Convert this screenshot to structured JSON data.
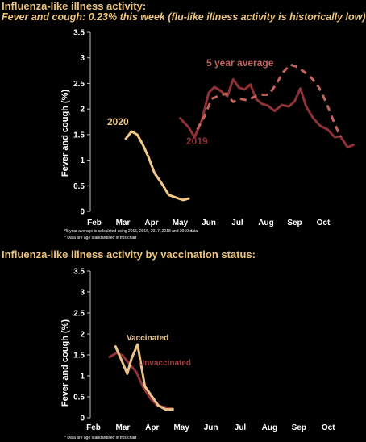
{
  "header": {
    "title1": "Influenza-like illness activity:",
    "subtitle1": "Fever and cough: 0.23% this week (flu-like illness activity is historically low)",
    "title2": "Influenza-like illness activity by vaccination status:"
  },
  "colors": {
    "title": "#ecc47e",
    "y2020": "#f2c886",
    "y2019": "#8e3238",
    "avg": "#c2655c",
    "vacc": "#e9c389",
    "unvacc": "#8e3238"
  },
  "chart_data": [
    {
      "type": "line",
      "ylabel": "Fever and cough (%)",
      "ylim": [
        0,
        3.5
      ],
      "yticks": [
        "0",
        "0.5",
        "1",
        "1.5",
        "2",
        "2.5",
        "3",
        "3.5"
      ],
      "months": [
        "Feb",
        "Mar",
        "Apr",
        "May",
        "Jun",
        "Jul",
        "Aug",
        "Sep",
        "Oct"
      ],
      "series": [
        {
          "name": "2020",
          "color": "#f2c886",
          "dashed": false,
          "x": [
            1.1,
            1.3,
            1.5,
            1.7,
            1.9,
            2.1,
            2.35,
            2.6,
            2.85,
            3.1,
            3.3
          ],
          "y": [
            1.42,
            1.56,
            1.5,
            1.3,
            1.05,
            0.75,
            0.55,
            0.32,
            0.27,
            0.22,
            0.25
          ]
        },
        {
          "name": "2019",
          "color": "#8e3238",
          "dashed": false,
          "x": [
            3.0,
            3.3,
            3.5,
            3.75,
            4.0,
            4.2,
            4.4,
            4.65,
            4.85,
            5.05,
            5.25,
            5.45,
            5.65,
            5.85,
            6.05,
            6.3,
            6.55,
            6.8,
            7.0,
            7.2,
            7.4,
            7.65,
            7.9,
            8.15,
            8.4,
            8.6,
            8.85,
            9.05
          ],
          "y": [
            1.82,
            1.64,
            1.45,
            1.77,
            2.32,
            2.43,
            2.36,
            2.25,
            2.58,
            2.42,
            2.38,
            2.48,
            2.2,
            2.1,
            2.07,
            1.96,
            2.08,
            2.05,
            2.15,
            2.4,
            2.05,
            1.82,
            1.67,
            1.6,
            1.45,
            1.47,
            1.25,
            1.3
          ]
        },
        {
          "name": "5 year average",
          "color": "#c2655c",
          "dashed": true,
          "x": [
            3.6,
            3.85,
            4.1,
            4.35,
            4.6,
            4.85,
            5.1,
            5.35,
            5.6,
            5.85,
            6.1,
            6.35,
            6.6,
            6.85,
            7.1,
            7.35,
            7.6,
            7.85,
            8.1,
            8.35,
            8.6
          ],
          "y": [
            1.6,
            1.86,
            2.2,
            2.26,
            2.3,
            2.14,
            2.2,
            2.17,
            2.24,
            2.28,
            2.28,
            2.48,
            2.72,
            2.87,
            2.82,
            2.72,
            2.6,
            2.42,
            2.13,
            1.78,
            1.45
          ]
        }
      ],
      "annotations": [
        "2020",
        "5 year average",
        "2019"
      ],
      "notes": [
        "*5 year average is calculated using 2015, 2016, 2017 ,2018 and 2019 data",
        "* Data are age standardised in this chart"
      ]
    },
    {
      "type": "line",
      "ylabel": "Fever and cough (%)",
      "ylim": [
        0,
        3.5
      ],
      "yticks": [
        "0",
        "0.5",
        "1",
        "1.5",
        "2",
        "2.5",
        "3",
        "3.5"
      ],
      "months": [
        "Feb",
        "Mar",
        "Apr",
        "May",
        "Jun",
        "Jul",
        "Aug",
        "Sep",
        "Oct"
      ],
      "series": [
        {
          "name": "Unvaccinated",
          "color": "#8e3238",
          "dashed": false,
          "x": [
            0.55,
            0.8,
            1.0,
            1.2,
            1.45,
            1.7,
            1.95,
            2.2,
            2.45,
            2.7
          ],
          "y": [
            1.45,
            1.55,
            1.48,
            1.3,
            1.1,
            0.72,
            0.45,
            0.28,
            0.25,
            0.22
          ]
        },
        {
          "name": "Vaccinated",
          "color": "#e9c389",
          "dashed": false,
          "x": [
            0.75,
            0.95,
            1.15,
            1.3,
            1.5,
            1.75,
            2.0,
            2.2,
            2.45,
            2.7
          ],
          "y": [
            1.7,
            1.38,
            1.05,
            1.42,
            1.75,
            0.75,
            0.5,
            0.3,
            0.2,
            0.2
          ]
        }
      ],
      "annotations": [
        "Vaccinated",
        "Unvaccinated"
      ],
      "notes": [
        "* Data are age standardised in this chart"
      ]
    }
  ]
}
